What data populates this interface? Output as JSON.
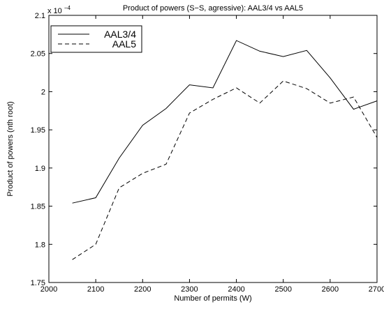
{
  "chart_data": {
    "type": "line",
    "title": "Product of powers (S−S, agressive): AAL3/4 vs AAL5",
    "xlabel": "Number of permits (W)",
    "ylabel": "Product of powers (nth root)",
    "y_exponent_label": "x 10",
    "y_exponent_power": "−4",
    "xlim": [
      2000,
      2700
    ],
    "ylim": [
      1.75,
      2.1
    ],
    "y_scale": 0.0001,
    "x_ticks": [
      "2000",
      "2100",
      "2200",
      "2300",
      "2400",
      "2500",
      "2600",
      "2700"
    ],
    "y_ticks": [
      "1.75",
      "1.8",
      "1.85",
      "1.9",
      "1.95",
      "2",
      "2.05",
      "2.1"
    ],
    "grid": false,
    "legend_position": "top-left",
    "x": [
      2050,
      2100,
      2150,
      2200,
      2250,
      2300,
      2350,
      2400,
      2450,
      2500,
      2550,
      2600,
      2650,
      2700
    ],
    "series": [
      {
        "name": "AAL3/4",
        "style": "solid",
        "values": [
          1.854,
          1.861,
          1.913,
          1.956,
          1.978,
          2.009,
          2.005,
          2.067,
          2.053,
          2.046,
          2.054,
          2.018,
          1.977,
          1.988
        ]
      },
      {
        "name": "AAL5",
        "style": "dashed",
        "values": [
          1.78,
          1.8,
          1.874,
          1.893,
          1.905,
          1.972,
          1.99,
          2.005,
          1.985,
          2.014,
          2.004,
          1.985,
          1.993,
          1.94
        ]
      }
    ],
    "colors": {
      "axis": "#000000",
      "line": "#000000",
      "background": "#ffffff"
    }
  }
}
